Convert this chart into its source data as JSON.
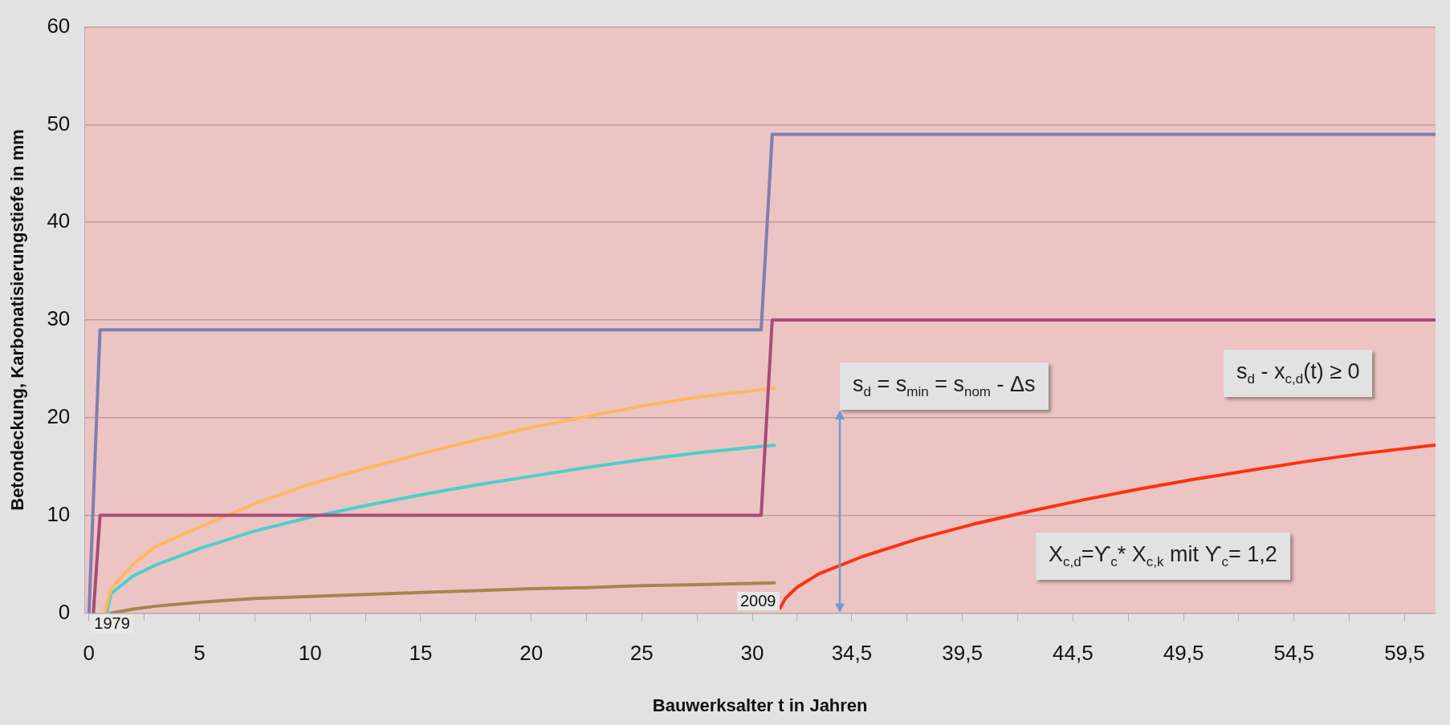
{
  "chart_data": {
    "type": "line",
    "xlabel": "Bauwerksalter t in Jahren",
    "ylabel": "Betondeckung, Karbonatisierungstiefe in mm",
    "xlim": [
      -0.2,
      60.9
    ],
    "ylim": [
      0,
      60
    ],
    "xticks": [
      0,
      {
        "value": 2.5,
        "label": null
      },
      5,
      {
        "value": 7.5,
        "label": null
      },
      10,
      {
        "value": 12.5,
        "label": null
      },
      15,
      {
        "value": 17.5,
        "label": null
      },
      20,
      {
        "value": 22.5,
        "label": null
      },
      25,
      {
        "value": 27.5,
        "label": null
      },
      30,
      {
        "value": 32,
        "label": null
      },
      {
        "value": 34.5,
        "label": "34,5"
      },
      {
        "value": 37,
        "label": null
      },
      {
        "value": 39.5,
        "label": "39,5"
      },
      {
        "value": 42,
        "label": null
      },
      {
        "value": 44.5,
        "label": "44,5"
      },
      {
        "value": 47,
        "label": null
      },
      {
        "value": 49.5,
        "label": "49,5"
      },
      {
        "value": 52,
        "label": null
      },
      {
        "value": 54.5,
        "label": "54,5"
      },
      {
        "value": 57,
        "label": null
      },
      {
        "value": 59.5,
        "label": "59,5"
      }
    ],
    "yticks": [
      0,
      10,
      20,
      30,
      40,
      50,
      60
    ],
    "grid": "y",
    "legend": false,
    "marker": "none",
    "line_style": "solid",
    "series": [
      {
        "color": "#7f7fb0",
        "x": [
          0,
          0.5,
          30.4,
          30.9,
          60.9
        ],
        "values": [
          0,
          29,
          29,
          49,
          49
        ]
      },
      {
        "color": "#a84c78",
        "x": [
          0.2,
          0.5,
          30.4,
          30.9,
          60.9
        ],
        "values": [
          0,
          10,
          10,
          30,
          30
        ]
      },
      {
        "color": "#ffb860",
        "x": [
          0.7,
          1,
          2,
          3,
          5,
          7.5,
          10,
          12.5,
          15,
          17.5,
          20,
          22.5,
          25,
          27.5,
          31
        ],
        "values": [
          0,
          2.5,
          5,
          6.8,
          8.8,
          11.2,
          13.2,
          14.8,
          16.3,
          17.7,
          19,
          20.1,
          21.2,
          22.1,
          23
        ]
      },
      {
        "color": "#4ccfcc",
        "x": [
          0.8,
          1,
          2,
          3,
          5,
          7.5,
          10,
          12.5,
          15,
          17.5,
          20,
          22.5,
          25,
          27.5,
          31
        ],
        "values": [
          0,
          2,
          3.8,
          4.9,
          6.6,
          8.4,
          9.8,
          11,
          12.1,
          13.1,
          14,
          14.9,
          15.7,
          16.4,
          17.2
        ]
      },
      {
        "color": "#a98450",
        "x": [
          1,
          2,
          3,
          5,
          7.5,
          10,
          12.5,
          15,
          17.5,
          20,
          22.5,
          25,
          27.5,
          31
        ],
        "values": [
          0,
          0.4,
          0.7,
          1.1,
          1.5,
          1.7,
          1.9,
          2.1,
          2.3,
          2.5,
          2.6,
          2.8,
          2.9,
          3.1
        ]
      },
      {
        "color": "#ff3010",
        "x": [
          31.25,
          31.5,
          32,
          33,
          35,
          37.5,
          40,
          42.5,
          45,
          47.5,
          50,
          52.5,
          55,
          57.5,
          60.9
        ],
        "values": [
          0.5,
          1.5,
          2.6,
          4,
          5.8,
          7.6,
          9.1,
          10.4,
          11.6,
          12.7,
          13.7,
          14.6,
          15.5,
          16.3,
          17.2
        ]
      }
    ],
    "annotations": [
      "1979",
      "2009",
      "s$_{d}$ = s$_{min}$ = s$_{nom}$ - Δs",
      "s$_{d}$ - x$_{c,d}$(t) ≥ 0",
      "X$_{c,d}$=ϒ$_{c}$* X$_{c,k}$ mit ϒ$_{c}$= 1,2"
    ]
  }
}
